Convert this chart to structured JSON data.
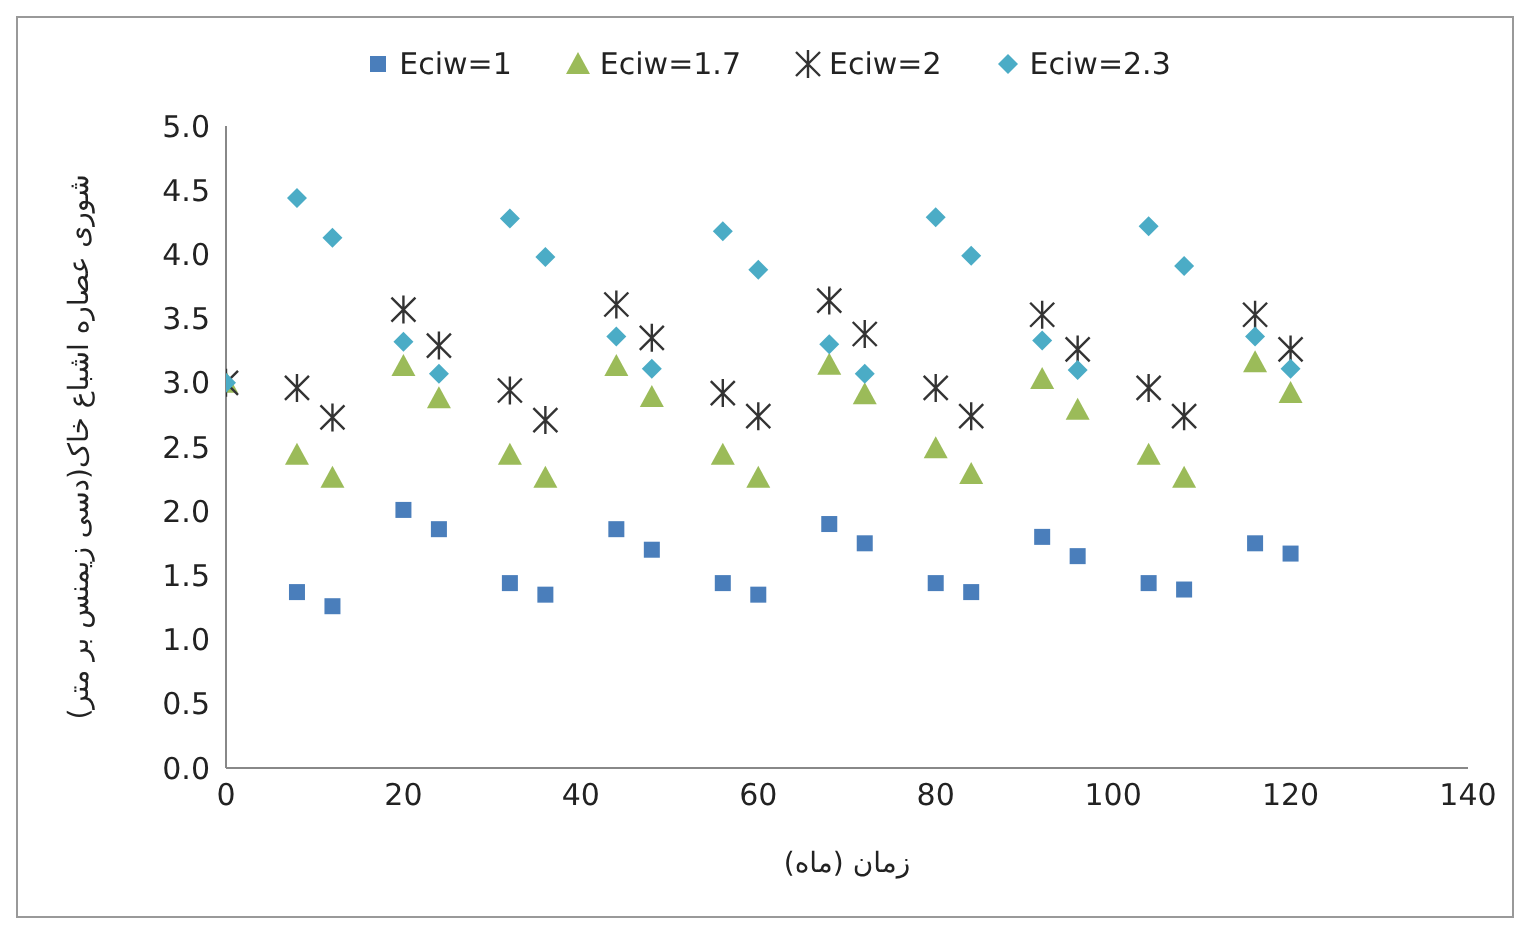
{
  "chart_data": {
    "type": "scatter",
    "xlabel": "زمان (ماه)",
    "ylabel": "شوری عصاره اشباع خاک(دسی زیمنس بر متر)",
    "x": [
      0,
      8,
      12,
      20,
      24,
      32,
      36,
      44,
      48,
      56,
      60,
      68,
      72,
      80,
      84,
      92,
      96,
      104,
      108,
      116,
      120
    ],
    "series": [
      {
        "name": "Eciw=1",
        "color": "#4a7ebb",
        "marker": "square",
        "values": [
          null,
          1.37,
          1.26,
          2.01,
          1.86,
          1.44,
          1.35,
          1.86,
          1.7,
          1.44,
          1.35,
          1.9,
          1.75,
          1.44,
          1.37,
          1.8,
          1.65,
          1.44,
          1.39,
          1.75,
          1.67
        ]
      },
      {
        "name": "Eciw=1.7",
        "color": "#9bbb59",
        "marker": "triangle",
        "values": [
          3.0,
          2.44,
          2.26,
          3.13,
          2.88,
          2.44,
          2.26,
          3.13,
          2.89,
          2.44,
          2.26,
          3.14,
          2.91,
          2.49,
          2.29,
          3.03,
          2.79,
          2.44,
          2.26,
          3.16,
          2.92
        ]
      },
      {
        "name": "Eciw=2",
        "color": "#333333",
        "marker": "cross",
        "values": [
          3.0,
          2.96,
          2.73,
          3.57,
          3.29,
          2.94,
          2.71,
          3.61,
          3.35,
          2.92,
          2.74,
          3.64,
          3.38,
          2.96,
          2.74,
          3.53,
          3.26,
          2.96,
          2.74,
          3.53,
          3.26
        ]
      },
      {
        "name": "Eciw=2.3",
        "color": "#4bacc6",
        "marker": "diamond",
        "values": [
          3.0,
          4.44,
          4.13,
          3.32,
          3.07,
          4.28,
          3.98,
          3.36,
          3.11,
          4.18,
          3.88,
          3.3,
          3.07,
          4.29,
          3.99,
          3.33,
          3.1,
          4.22,
          3.91,
          3.36,
          3.11
        ]
      }
    ],
    "xlim": [
      0,
      140
    ],
    "xticks": [
      0,
      20,
      40,
      60,
      80,
      100,
      120,
      140
    ],
    "ylim": [
      0,
      5
    ],
    "yticks": [
      {
        "value": 0,
        "label": "0.0"
      },
      {
        "value": 0.5,
        "label": "0.5"
      },
      {
        "value": 1,
        "label": "1.0"
      },
      {
        "value": 1.5,
        "label": "1.5"
      },
      {
        "value": 2,
        "label": "2.0"
      },
      {
        "value": 2.5,
        "label": "2.5"
      },
      {
        "value": 3,
        "label": "3.0"
      },
      {
        "value": 3.5,
        "label": "3.5"
      },
      {
        "value": 4,
        "label": "4.0"
      },
      {
        "value": 4.5,
        "label": "4.5"
      },
      {
        "value": 5,
        "label": "5.0"
      }
    ],
    "grid": false,
    "legend": "top"
  }
}
